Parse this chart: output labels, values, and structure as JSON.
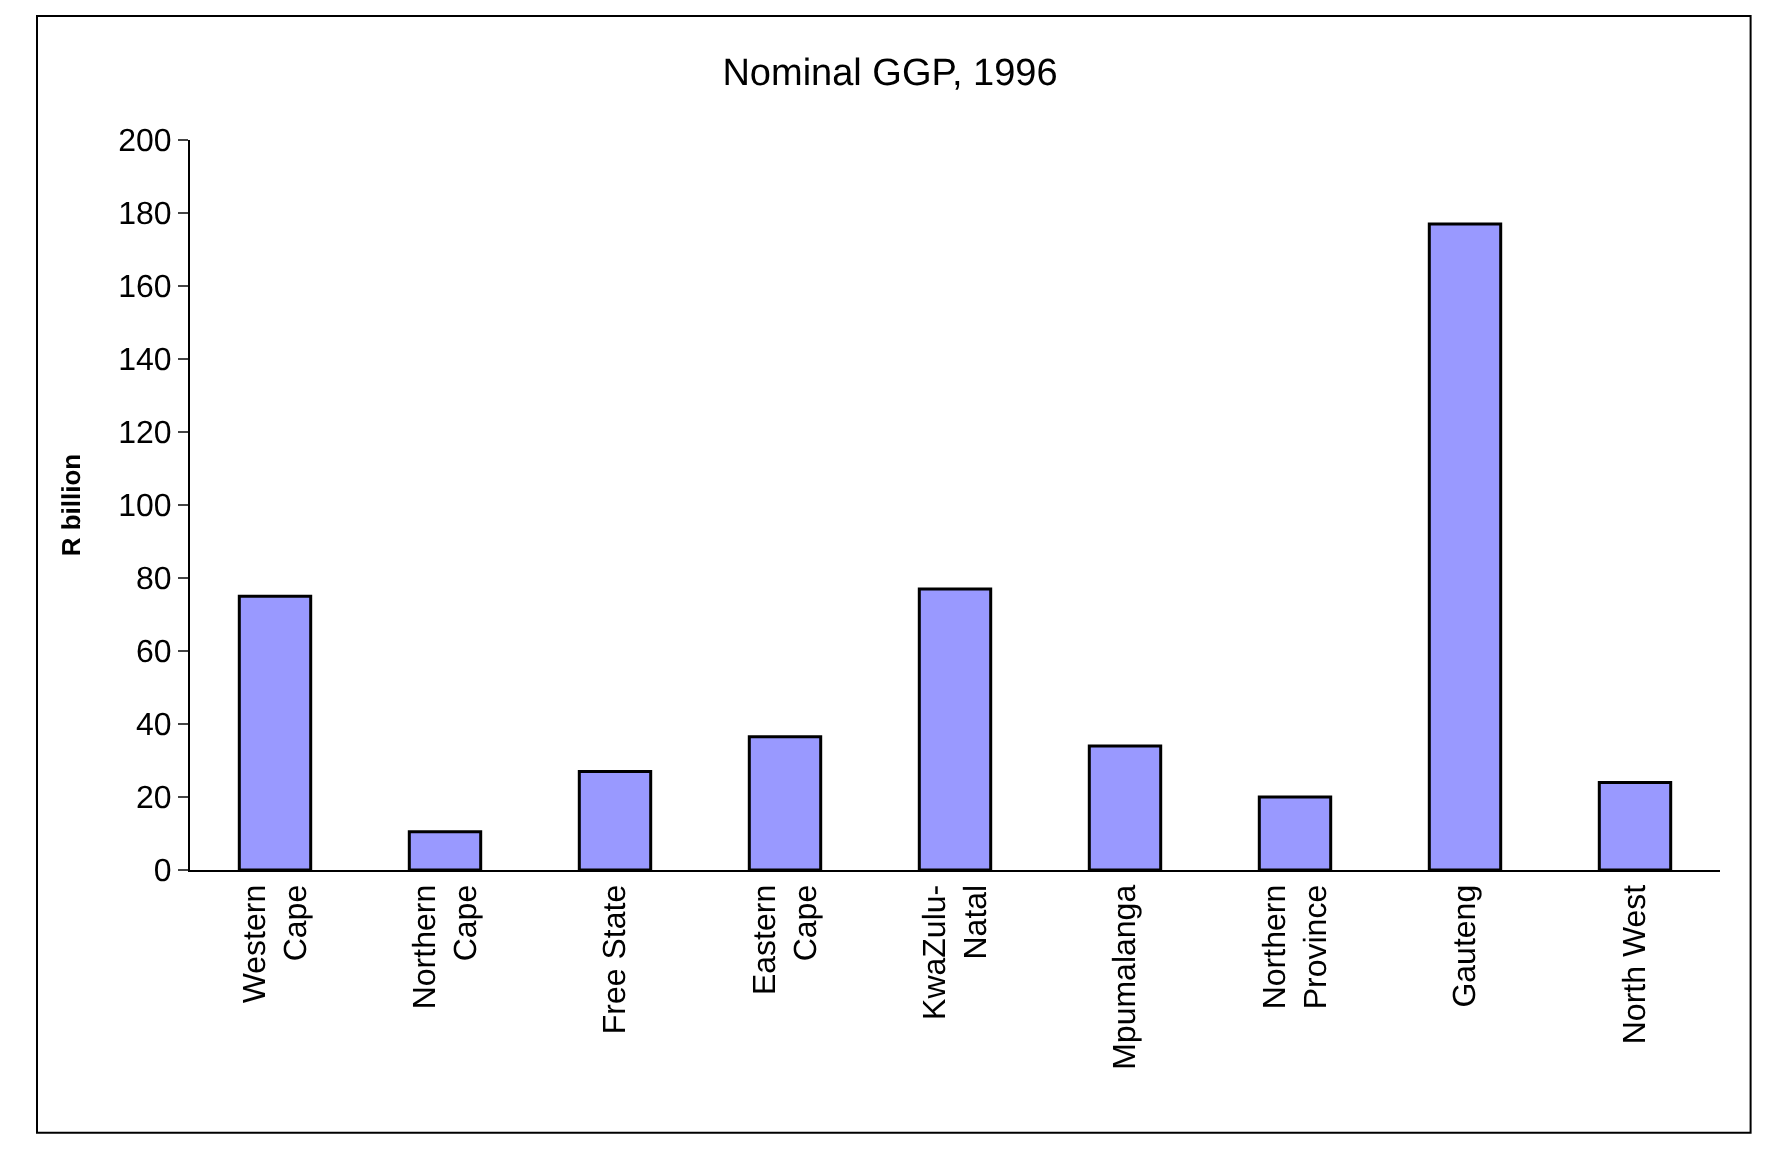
{
  "chart_data": {
    "type": "bar",
    "title": "Nominal GGP, 1996",
    "ylabel": "R billion",
    "categories": [
      "Western Cape",
      "Northern Cape",
      "Free State",
      "Eastern Cape",
      "KwaZulu-Natal",
      "Mpumalanga",
      "Northern Province",
      "Gauteng",
      "North West"
    ],
    "values": [
      75,
      10.5,
      27,
      36.5,
      77,
      34,
      20,
      177,
      24
    ],
    "color": "#9999ff",
    "ylim": [
      0,
      200
    ],
    "yticks": [
      0,
      20,
      40,
      60,
      80,
      100,
      120,
      140,
      160,
      180,
      200
    ]
  }
}
